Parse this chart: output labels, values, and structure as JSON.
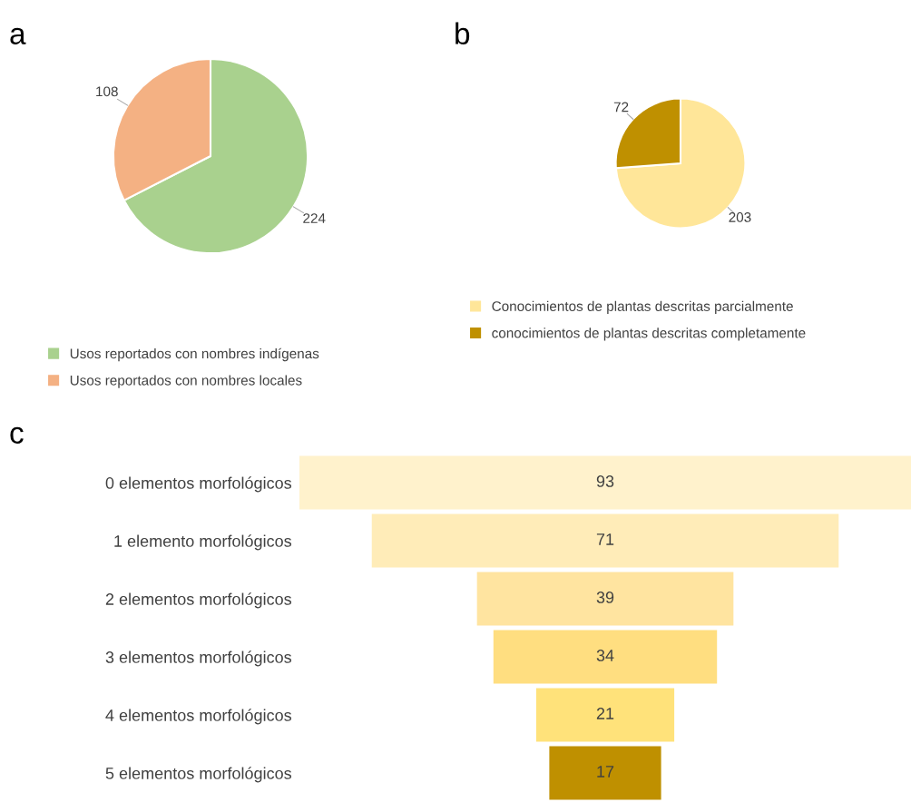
{
  "chart_data": [
    {
      "type": "pie",
      "title": "a",
      "categories": [
        "Usos reportados con nombres indígenas",
        "Usos reportados con nombres locales"
      ],
      "values": [
        224,
        108
      ],
      "colors": [
        "#a9d18e",
        "#f4b183"
      ],
      "data_labels": true,
      "legend": "bottom"
    },
    {
      "type": "pie",
      "title": "b",
      "categories": [
        "Conocimientos de plantas descritas parcialmente",
        "conocimientos de plantas descritas completamente"
      ],
      "values": [
        203,
        72
      ],
      "colors": [
        "#ffe699",
        "#bf9000"
      ],
      "data_labels": true,
      "legend": "bottom"
    },
    {
      "type": "other",
      "title": "c",
      "categories": [
        "0 elementos morfológicos",
        "1 elemento morfológicos",
        "2 elementos morfológicos",
        "3 elementos morfológicos",
        "4 elementos morfológicos",
        "5 elementos morfológicos"
      ],
      "values": [
        93,
        71,
        39,
        34,
        21,
        17
      ],
      "colors": [
        "#fff2cc",
        "#ffecb8",
        "#ffe4a0",
        "#ffde80",
        "#ffe27a",
        "#bf9000"
      ],
      "data_labels": true
    }
  ]
}
